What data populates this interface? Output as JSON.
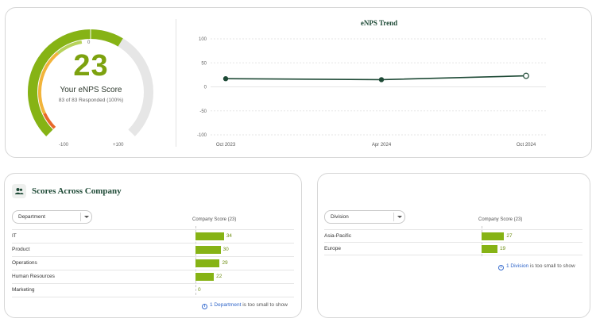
{
  "gauge": {
    "score": "23",
    "title": "Your eNPS Score",
    "responded": "83 of 83 Responded (100%)",
    "tick_min": "-100",
    "tick_mid": "0",
    "tick_max": "+100",
    "min": -100,
    "max": 100,
    "value": 23
  },
  "chart_data": {
    "type": "line",
    "title": "eNPS Trend",
    "categories": [
      "Oct 2023",
      "Apr 2024",
      "Oct 2024"
    ],
    "series": [
      {
        "values": [
          17,
          15,
          23
        ]
      }
    ],
    "ylim": [
      -100,
      100
    ],
    "yticks": [
      "100",
      "50",
      "0",
      "-50",
      "-100"
    ],
    "grid": true,
    "colors": {
      "line": "#1e4a36"
    }
  },
  "department_card": {
    "title": "Scores Across Company",
    "select_value": "Department",
    "column_header": "Company Score (23)",
    "rows": [
      {
        "label": "IT",
        "value": 34
      },
      {
        "label": "Product",
        "value": 30
      },
      {
        "label": "Operations",
        "value": 29
      },
      {
        "label": "Human Resources",
        "value": 22
      },
      {
        "label": "Marketing",
        "value": 0
      }
    ],
    "note_link": "1 Department",
    "note_text": " is too small to show"
  },
  "division_card": {
    "select_value": "Division",
    "column_header": "Company Score (23)",
    "rows": [
      {
        "label": "Asia-Pacific",
        "value": 27
      },
      {
        "label": "Europe",
        "value": 19
      }
    ],
    "note_link": "1 Division",
    "note_text": " is too small to show"
  },
  "colors": {
    "accent_green": "#86b315",
    "dark_green": "#1e4a36",
    "link_blue": "#2f65c9"
  }
}
